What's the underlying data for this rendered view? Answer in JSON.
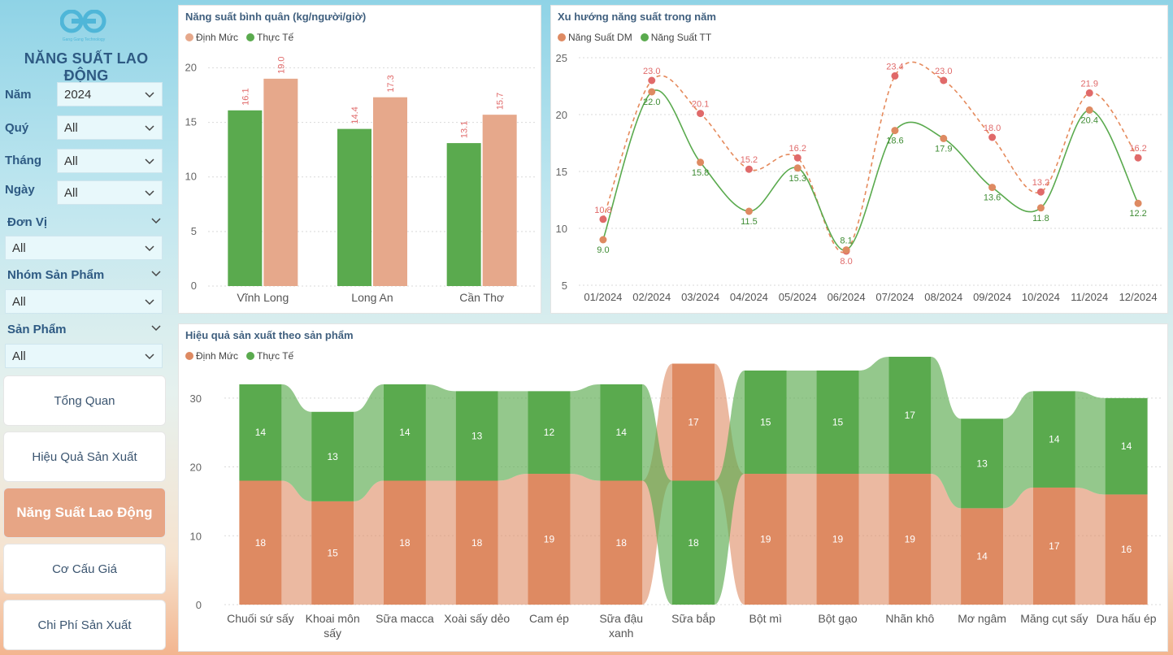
{
  "app": {
    "title": "NĂNG SUẤT LAO ĐỘNG",
    "logo_text": "Gang Gang Technology"
  },
  "filters": {
    "nam": {
      "label": "Năm",
      "value": "2024"
    },
    "quy": {
      "label": "Quý",
      "value": "All"
    },
    "thang": {
      "label": "Tháng",
      "value": "All"
    },
    "ngay": {
      "label": "Ngày",
      "value": "All"
    },
    "don_vi": {
      "label": "Đơn Vị",
      "value": "All"
    },
    "nhom_san_pham": {
      "label": "Nhóm Sản Phẩm",
      "value": "All"
    },
    "san_pham": {
      "label": "Sản Phẩm",
      "value": "All"
    }
  },
  "nav": {
    "tong_quan": "Tổng Quan",
    "hieu_qua": "Hiệu Quả Sản Xuất",
    "nang_suat": "Năng Suất Lao Động",
    "co_cau_gia": "Cơ Cấu Giá",
    "chi_phi": "Chi Phí Sản Xuất"
  },
  "colors": {
    "green": "#5aaa4e",
    "salmon": "#e6a88b",
    "orange": "#de8a62",
    "red": "#e06a6a"
  },
  "chart_data": [
    {
      "type": "bar",
      "title": "Năng suất bình quân (kg/người/giờ)",
      "categories": [
        "Vĩnh Long",
        "Long An",
        "Cần Thơ"
      ],
      "series": [
        {
          "name": "Định Mức",
          "values": [
            19.0,
            17.3,
            15.7
          ]
        },
        {
          "name": "Thực Tế",
          "values": [
            16.1,
            14.4,
            13.1
          ]
        }
      ],
      "yticks": [
        0,
        5,
        10,
        15,
        20
      ],
      "ylim": [
        0,
        21
      ],
      "legend": "top-left"
    },
    {
      "type": "line",
      "title": "Xu hướng năng suất trong năm",
      "categories": [
        "01/2024",
        "02/2024",
        "03/2024",
        "04/2024",
        "05/2024",
        "06/2024",
        "07/2024",
        "08/2024",
        "09/2024",
        "10/2024",
        "11/2024",
        "12/2024"
      ],
      "series": [
        {
          "name": "Năng Suất DM",
          "values": [
            10.8,
            23.0,
            20.1,
            15.2,
            16.2,
            8.0,
            23.4,
            23.0,
            18.0,
            13.2,
            21.9,
            16.2
          ]
        },
        {
          "name": "Năng Suất TT",
          "values": [
            9.0,
            22.0,
            15.8,
            11.5,
            15.3,
            8.1,
            18.6,
            17.9,
            13.6,
            11.8,
            20.4,
            12.2
          ]
        }
      ],
      "yticks": [
        5,
        10,
        15,
        20,
        25
      ],
      "ylim": [
        5,
        25
      ],
      "legend": "top-left"
    },
    {
      "type": "bar",
      "title": "Hiệu quả sản xuất theo sản phẩm",
      "categories": [
        "Chuối sứ sấy",
        "Khoai môn sấy",
        "Sữa macca",
        "Xoài sấy dẻo",
        "Cam ép",
        "Sữa đậu xanh",
        "Sữa bắp",
        "Bột mì",
        "Bột gạo",
        "Nhãn khô",
        "Mơ ngâm",
        "Măng cụt sấy",
        "Dưa hấu ép"
      ],
      "category_lines": [
        [
          "Chuối sứ sấy"
        ],
        [
          "Khoai môn",
          "sấy"
        ],
        [
          "Sữa macca"
        ],
        [
          "Xoài sấy dẻo"
        ],
        [
          "Cam ép"
        ],
        [
          "Sữa đậu",
          "xanh"
        ],
        [
          "Sữa bắp"
        ],
        [
          "Bột mì"
        ],
        [
          "Bột gạo"
        ],
        [
          "Nhãn khô"
        ],
        [
          "Mơ ngâm"
        ],
        [
          "Măng cụt sấy"
        ],
        [
          "Dưa hấu ép"
        ]
      ],
      "series": [
        {
          "name": "Định Mức",
          "values": [
            18,
            15,
            18,
            18,
            19,
            18,
            17,
            19,
            19,
            19,
            14,
            17,
            16
          ]
        },
        {
          "name": "Thực Tế",
          "values": [
            14,
            13,
            14,
            13,
            12,
            14,
            18,
            15,
            15,
            17,
            13,
            14,
            14
          ]
        }
      ],
      "yticks": [
        0,
        10,
        20,
        30
      ],
      "ylim": [
        0,
        36
      ],
      "stacked": true,
      "legend": "top-left"
    }
  ]
}
